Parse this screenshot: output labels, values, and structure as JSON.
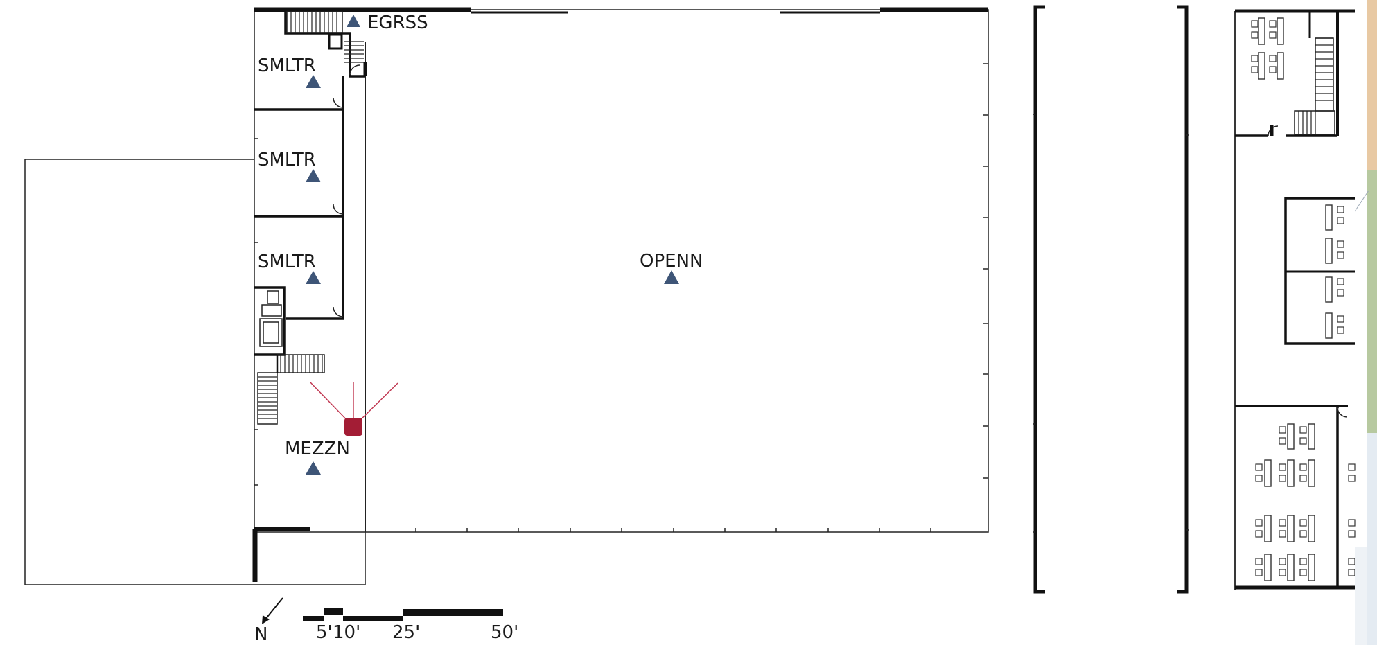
{
  "rooms": [
    {
      "id": "egress",
      "label": "EGRSS"
    },
    {
      "id": "smelter-1",
      "label": "SMLTR"
    },
    {
      "id": "smelter-2",
      "label": "SMLTR"
    },
    {
      "id": "smelter-3",
      "label": "SMLTR"
    },
    {
      "id": "mezzanine",
      "label": "MEZZN"
    },
    {
      "id": "open",
      "label": "OPENN"
    }
  ],
  "compass": {
    "label": "N"
  },
  "scale_bar": {
    "labels": [
      "5'",
      "10'",
      "25'",
      "50'"
    ]
  },
  "colors": {
    "room_marker": "#3e5577",
    "camera_marker": "#a31d35",
    "camera_fov": "#c0354f",
    "walls": "#111111",
    "side_strip": [
      "#e8c9a3",
      "#b7c9a0",
      "#e4ebf2"
    ]
  },
  "icons": {
    "room_marker": "triangle-marker-icon",
    "camera": "camera-marker-icon",
    "compass": "north-arrow-icon"
  }
}
